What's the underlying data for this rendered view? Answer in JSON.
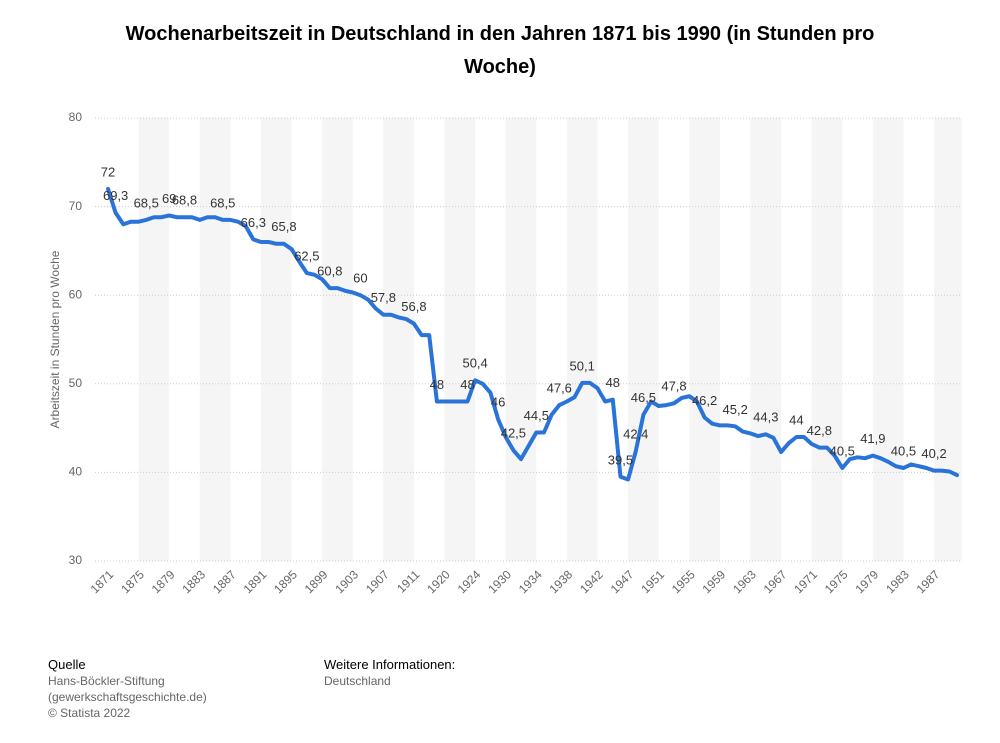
{
  "chart_data": {
    "type": "line",
    "title": "Wochenarbeitszeit in Deutschland in den Jahren 1871 bis 1990 (in Stunden pro Woche)",
    "y_label": "Arbeitszeit in Stunden pro Woche",
    "categories": [
      "1871",
      null,
      null,
      null,
      "1875",
      null,
      null,
      null,
      "1879",
      null,
      null,
      null,
      "1883",
      null,
      null,
      null,
      "1887",
      null,
      null,
      null,
      "1891",
      null,
      null,
      null,
      "1895",
      null,
      null,
      null,
      "1899",
      null,
      null,
      null,
      "1903",
      null,
      null,
      null,
      "1907",
      null,
      null,
      null,
      "1911",
      null,
      null,
      null,
      "1920",
      null,
      null,
      null,
      "1924",
      null,
      null,
      null,
      "1930",
      null,
      null,
      null,
      "1934",
      null,
      null,
      null,
      "1938",
      null,
      null,
      null,
      "1942",
      null,
      null,
      null,
      "1947",
      null,
      null,
      null,
      "1951",
      null,
      null,
      null,
      "1955",
      null,
      null,
      null,
      "1959",
      null,
      null,
      null,
      "1963",
      null,
      null,
      null,
      "1967",
      null,
      null,
      null,
      "1971",
      null,
      null,
      null,
      "1975",
      null,
      null,
      null,
      "1979",
      null,
      null,
      null,
      "1983",
      null,
      null,
      null,
      "1987",
      null,
      null,
      null
    ],
    "values": [
      72,
      69.3,
      68,
      68.3,
      68.3,
      68.5,
      68.8,
      68.8,
      69,
      68.8,
      68.8,
      68.8,
      68.5,
      68.8,
      68.8,
      68.5,
      68.5,
      68.3,
      67.8,
      66.3,
      66,
      66,
      65.8,
      65.8,
      65.2,
      63.8,
      62.5,
      62.3,
      61.8,
      60.8,
      60.8,
      60.5,
      60.3,
      60,
      59.5,
      58.5,
      57.8,
      57.8,
      57.5,
      57.3,
      56.8,
      55.5,
      55.5,
      48,
      48,
      48,
      48,
      48,
      50.4,
      50,
      49,
      46,
      44,
      42.5,
      41.5,
      43,
      44.5,
      44.5,
      46.5,
      47.6,
      48,
      48.5,
      50.1,
      50.1,
      49.5,
      48,
      48.2,
      39.5,
      39.2,
      42.4,
      46.5,
      48,
      47.5,
      47.6,
      47.8,
      48.4,
      48.6,
      48,
      46.2,
      45.5,
      45.3,
      45.3,
      45.2,
      44.6,
      44.4,
      44.1,
      44.3,
      43.9,
      42.3,
      43.3,
      44,
      44,
      43.2,
      42.8,
      42.8,
      41.9,
      40.5,
      41.5,
      41.7,
      41.6,
      41.9,
      41.6,
      41.2,
      40.7,
      40.5,
      40.9,
      40.7,
      40.5,
      40.2,
      40.2,
      40.1,
      39.7
    ],
    "value_labels": [
      "72",
      "69,3",
      null,
      null,
      null,
      "68,5",
      null,
      null,
      "69",
      null,
      "68,8",
      null,
      null,
      null,
      null,
      "68,5",
      null,
      null,
      null,
      "66,3",
      null,
      null,
      null,
      "65,8",
      null,
      null,
      "62,5",
      null,
      null,
      "60,8",
      null,
      null,
      null,
      "60",
      null,
      null,
      "57,8",
      null,
      null,
      null,
      "56,8",
      null,
      null,
      "48",
      null,
      null,
      null,
      "48",
      "50,4",
      null,
      null,
      "46",
      null,
      "42,5",
      null,
      null,
      "44,5",
      null,
      null,
      "47,6",
      null,
      null,
      "50,1",
      null,
      null,
      null,
      "48",
      "39,5",
      null,
      "42,4",
      "46,5",
      null,
      null,
      null,
      "47,8",
      null,
      null,
      null,
      "46,2",
      null,
      null,
      null,
      "45,2",
      null,
      null,
      null,
      "44,3",
      null,
      null,
      null,
      "44",
      null,
      null,
      "42,8",
      null,
      null,
      "40,5",
      null,
      null,
      null,
      "41,9",
      null,
      null,
      null,
      "40,5",
      null,
      null,
      null,
      "40,2",
      null,
      null,
      null
    ],
    "color": "#2a74d9",
    "ylim": [
      30,
      80
    ],
    "yticks": [
      30,
      40,
      50,
      60,
      70,
      80
    ],
    "grid": true,
    "source_heading": "Quelle",
    "source_lines": [
      "Hans-Böckler-Stiftung",
      "(gewerkschaftsgeschichte.de)",
      "© Statista 2022"
    ],
    "info_heading": "Weitere Informationen:",
    "info_lines": [
      "Deutschland"
    ]
  }
}
